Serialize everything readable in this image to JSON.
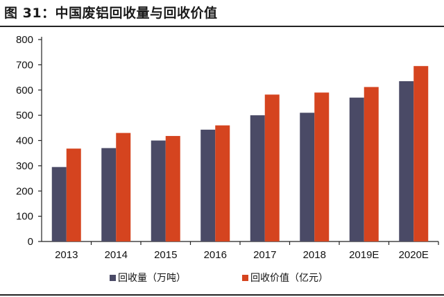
{
  "figure": {
    "title": "图 31：中国废铝回收量与回收价值"
  },
  "colors": {
    "series_0": "#4a4a66",
    "series_1": "#d5441f",
    "axis": "#222222"
  },
  "chart_data": {
    "type": "bar",
    "categories": [
      "2013",
      "2014",
      "2015",
      "2016",
      "2017",
      "2018",
      "2019E",
      "2020E"
    ],
    "series": [
      {
        "name": "回收量（万吨）",
        "values": [
          295,
          370,
          400,
          443,
          500,
          510,
          570,
          635
        ]
      },
      {
        "name": "回收价值（亿元）",
        "values": [
          368,
          430,
          418,
          460,
          582,
          590,
          612,
          695
        ]
      }
    ],
    "title": "",
    "xlabel": "",
    "ylabel": "",
    "ylim": [
      0,
      800
    ],
    "yticks": [
      0,
      100,
      200,
      300,
      400,
      500,
      600,
      700,
      800
    ],
    "grid": false,
    "legend_position": "bottom"
  }
}
